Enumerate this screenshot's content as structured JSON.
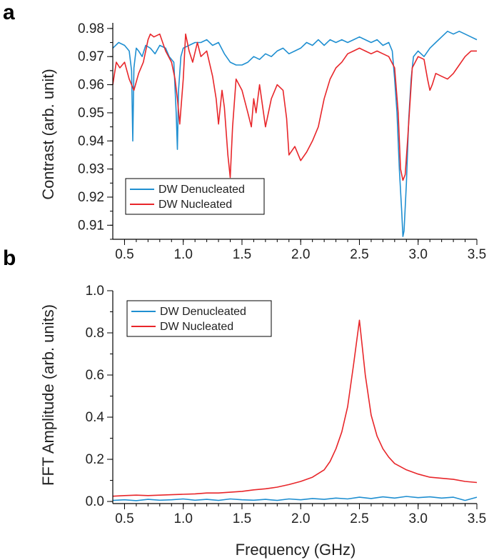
{
  "chart_data": [
    {
      "panel_label": "a",
      "type": "line",
      "title": "",
      "xlabel": "",
      "ylabel": "Contrast (arb. unit)",
      "xlim": [
        0.4,
        3.5
      ],
      "ylim": [
        0.905,
        0.982
      ],
      "xticks": [
        "0.5",
        "1.0",
        "1.5",
        "2.0",
        "2.5",
        "3.0",
        "3.5"
      ],
      "yticks": [
        "0.91",
        "0.92",
        "0.93",
        "0.94",
        "0.95",
        "0.96",
        "0.97",
        "0.98"
      ],
      "legend_position": "bottom-left",
      "series": [
        {
          "name": "DW Denucleated",
          "color": "#1f8fd1",
          "x": [
            0.4,
            0.45,
            0.5,
            0.54,
            0.56,
            0.57,
            0.58,
            0.6,
            0.62,
            0.65,
            0.68,
            0.72,
            0.76,
            0.8,
            0.85,
            0.88,
            0.92,
            0.94,
            0.95,
            0.96,
            0.98,
            1.0,
            1.05,
            1.1,
            1.15,
            1.2,
            1.25,
            1.3,
            1.35,
            1.4,
            1.45,
            1.5,
            1.55,
            1.6,
            1.65,
            1.7,
            1.75,
            1.8,
            1.85,
            1.9,
            1.95,
            2.0,
            2.05,
            2.1,
            2.15,
            2.2,
            2.25,
            2.3,
            2.35,
            2.4,
            2.45,
            2.5,
            2.55,
            2.6,
            2.65,
            2.7,
            2.75,
            2.78,
            2.8,
            2.82,
            2.84,
            2.86,
            2.87,
            2.88,
            2.9,
            2.92,
            2.94,
            2.96,
            3.0,
            3.05,
            3.1,
            3.15,
            3.2,
            3.25,
            3.3,
            3.35,
            3.4,
            3.45,
            3.5
          ],
          "y": [
            0.973,
            0.975,
            0.974,
            0.972,
            0.965,
            0.94,
            0.966,
            0.973,
            0.972,
            0.97,
            0.974,
            0.973,
            0.971,
            0.974,
            0.973,
            0.97,
            0.968,
            0.95,
            0.937,
            0.958,
            0.97,
            0.973,
            0.974,
            0.975,
            0.975,
            0.976,
            0.974,
            0.975,
            0.971,
            0.968,
            0.967,
            0.967,
            0.968,
            0.97,
            0.969,
            0.971,
            0.97,
            0.972,
            0.973,
            0.971,
            0.972,
            0.973,
            0.975,
            0.974,
            0.976,
            0.974,
            0.976,
            0.975,
            0.976,
            0.975,
            0.976,
            0.977,
            0.976,
            0.975,
            0.976,
            0.974,
            0.975,
            0.972,
            0.962,
            0.95,
            0.93,
            0.915,
            0.906,
            0.908,
            0.925,
            0.948,
            0.962,
            0.97,
            0.972,
            0.97,
            0.973,
            0.975,
            0.977,
            0.979,
            0.978,
            0.979,
            0.978,
            0.977,
            0.976
          ]
        },
        {
          "name": "DW Nucleated",
          "color": "#e8262a",
          "x": [
            0.4,
            0.43,
            0.46,
            0.5,
            0.54,
            0.58,
            0.62,
            0.66,
            0.7,
            0.72,
            0.75,
            0.8,
            0.85,
            0.9,
            0.93,
            0.95,
            0.97,
            1.0,
            1.02,
            1.05,
            1.08,
            1.12,
            1.15,
            1.2,
            1.25,
            1.28,
            1.3,
            1.33,
            1.35,
            1.38,
            1.4,
            1.42,
            1.45,
            1.5,
            1.55,
            1.58,
            1.6,
            1.62,
            1.65,
            1.7,
            1.75,
            1.8,
            1.85,
            1.88,
            1.9,
            1.95,
            2.0,
            2.05,
            2.1,
            2.15,
            2.2,
            2.25,
            2.3,
            2.35,
            2.4,
            2.45,
            2.5,
            2.55,
            2.6,
            2.65,
            2.7,
            2.75,
            2.8,
            2.83,
            2.85,
            2.87,
            2.89,
            2.91,
            2.95,
            3.0,
            3.05,
            3.08,
            3.1,
            3.12,
            3.15,
            3.2,
            3.25,
            3.3,
            3.35,
            3.4,
            3.45,
            3.5
          ],
          "y": [
            0.96,
            0.968,
            0.966,
            0.968,
            0.962,
            0.958,
            0.964,
            0.968,
            0.976,
            0.978,
            0.977,
            0.978,
            0.972,
            0.968,
            0.962,
            0.955,
            0.946,
            0.962,
            0.978,
            0.972,
            0.968,
            0.975,
            0.97,
            0.972,
            0.963,
            0.955,
            0.946,
            0.958,
            0.952,
            0.935,
            0.927,
            0.945,
            0.962,
            0.958,
            0.95,
            0.945,
            0.955,
            0.95,
            0.96,
            0.945,
            0.955,
            0.96,
            0.958,
            0.948,
            0.935,
            0.938,
            0.933,
            0.936,
            0.94,
            0.945,
            0.955,
            0.962,
            0.966,
            0.968,
            0.971,
            0.972,
            0.973,
            0.972,
            0.971,
            0.972,
            0.971,
            0.97,
            0.966,
            0.95,
            0.93,
            0.926,
            0.928,
            0.94,
            0.966,
            0.97,
            0.969,
            0.962,
            0.958,
            0.96,
            0.964,
            0.963,
            0.962,
            0.964,
            0.967,
            0.97,
            0.972,
            0.972
          ]
        }
      ]
    },
    {
      "panel_label": "b",
      "type": "line",
      "title": "",
      "xlabel": "Frequency (GHz)",
      "ylabel": "FFT Amplitude (arb. units)",
      "xlim": [
        0.4,
        3.5
      ],
      "ylim": [
        -0.01,
        1.0
      ],
      "xticks": [
        "0.5",
        "1.0",
        "1.5",
        "2.0",
        "2.5",
        "3.0",
        "3.5"
      ],
      "yticks": [
        "0.0",
        "0.2",
        "0.4",
        "0.6",
        "0.8",
        "1.0"
      ],
      "legend_position": "top-left",
      "series": [
        {
          "name": "DW Denucleated",
          "color": "#1f8fd1",
          "x": [
            0.4,
            0.5,
            0.6,
            0.7,
            0.8,
            0.9,
            1.0,
            1.1,
            1.2,
            1.3,
            1.4,
            1.5,
            1.6,
            1.7,
            1.8,
            1.9,
            2.0,
            2.1,
            2.2,
            2.3,
            2.4,
            2.5,
            2.6,
            2.7,
            2.8,
            2.9,
            3.0,
            3.1,
            3.2,
            3.3,
            3.4,
            3.5
          ],
          "y": [
            0.005,
            0.008,
            0.004,
            0.01,
            0.006,
            0.008,
            0.012,
            0.006,
            0.01,
            0.005,
            0.012,
            0.008,
            0.006,
            0.01,
            0.005,
            0.012,
            0.008,
            0.014,
            0.01,
            0.016,
            0.012,
            0.02,
            0.014,
            0.022,
            0.016,
            0.024,
            0.018,
            0.022,
            0.016,
            0.02,
            0.005,
            0.02
          ]
        },
        {
          "name": "DW Nucleated",
          "color": "#e8262a",
          "x": [
            0.4,
            0.5,
            0.6,
            0.7,
            0.8,
            0.9,
            1.0,
            1.1,
            1.2,
            1.3,
            1.4,
            1.5,
            1.6,
            1.7,
            1.8,
            1.9,
            2.0,
            2.1,
            2.2,
            2.25,
            2.3,
            2.35,
            2.4,
            2.45,
            2.5,
            2.55,
            2.6,
            2.65,
            2.7,
            2.75,
            2.8,
            2.9,
            3.0,
            3.1,
            3.2,
            3.3,
            3.4,
            3.5
          ],
          "y": [
            0.025,
            0.028,
            0.03,
            0.028,
            0.03,
            0.032,
            0.034,
            0.036,
            0.04,
            0.04,
            0.044,
            0.048,
            0.055,
            0.06,
            0.068,
            0.08,
            0.095,
            0.115,
            0.15,
            0.19,
            0.25,
            0.33,
            0.45,
            0.65,
            0.86,
            0.6,
            0.41,
            0.31,
            0.25,
            0.21,
            0.18,
            0.15,
            0.13,
            0.115,
            0.11,
            0.105,
            0.095,
            0.09
          ]
        }
      ]
    }
  ]
}
